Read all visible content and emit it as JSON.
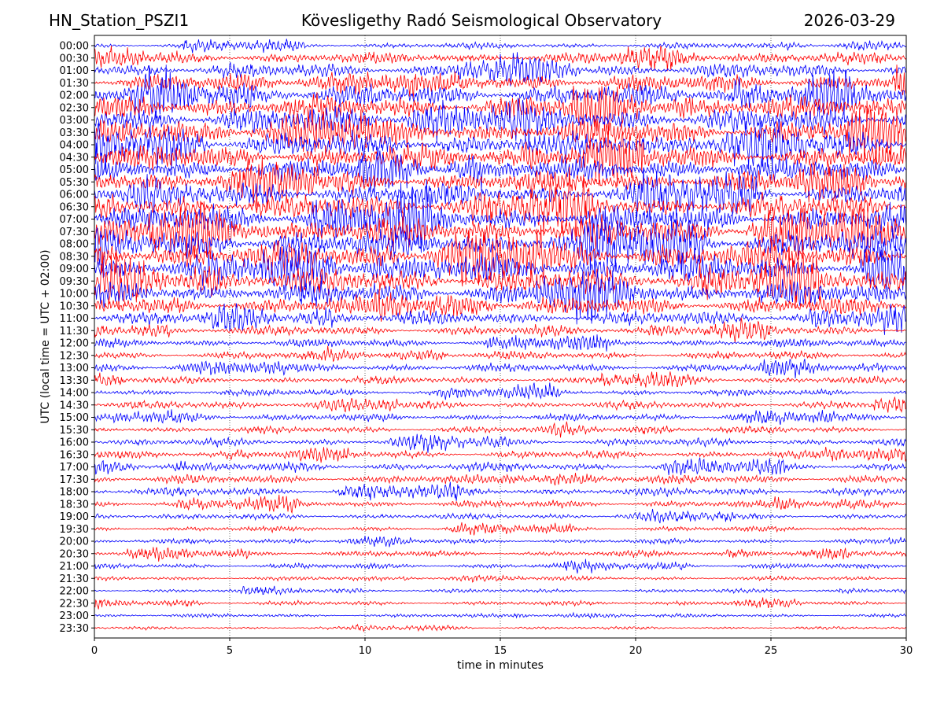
{
  "header": {
    "station": "HN_Station_PSZI1",
    "observatory": "Kövesligethy Radó Seismological Observatory",
    "date": "2026-03-29"
  },
  "chart_data": {
    "type": "line",
    "title": "Kövesligethy Radó Seismological Observatory",
    "xlabel": "time in minutes",
    "ylabel": "UTC (local time = UTC + 02:00)",
    "xlim": [
      0,
      30
    ],
    "x_ticks": [
      "0",
      "5",
      "10",
      "15",
      "20",
      "25",
      "30"
    ],
    "y_ticks": [
      "00:00",
      "00:30",
      "01:00",
      "01:30",
      "02:00",
      "02:30",
      "03:00",
      "03:30",
      "04:00",
      "04:30",
      "05:00",
      "05:30",
      "06:00",
      "06:30",
      "07:00",
      "07:30",
      "08:00",
      "08:30",
      "09:00",
      "09:30",
      "10:00",
      "10:30",
      "11:00",
      "11:30",
      "12:00",
      "12:30",
      "13:00",
      "13:30",
      "14:00",
      "14:30",
      "15:00",
      "15:30",
      "16:00",
      "16:30",
      "17:00",
      "17:30",
      "18:00",
      "18:30",
      "19:00",
      "19:30",
      "20:00",
      "20:30",
      "21:00",
      "21:30",
      "22:00",
      "22:30",
      "23:00",
      "23:30"
    ],
    "trace_colors": [
      "#0000ff",
      "#ff0000"
    ],
    "relative_amplitude": [
      0.6,
      1.2,
      1.5,
      1.8,
      2.2,
      2.4,
      2.6,
      2.6,
      2.6,
      2.5,
      2.4,
      2.3,
      2.4,
      2.6,
      2.8,
      2.9,
      3.0,
      3.0,
      2.9,
      2.7,
      2.3,
      1.8,
      1.4,
      1.0,
      0.85,
      0.8,
      0.85,
      0.75,
      0.7,
      0.8,
      0.75,
      0.7,
      0.75,
      0.8,
      0.9,
      0.9,
      0.85,
      0.75,
      0.6,
      0.55,
      0.5,
      0.6,
      0.55,
      0.45,
      0.4,
      0.45,
      0.38,
      0.3
    ],
    "grid": "vertical dotted at x ticks"
  }
}
